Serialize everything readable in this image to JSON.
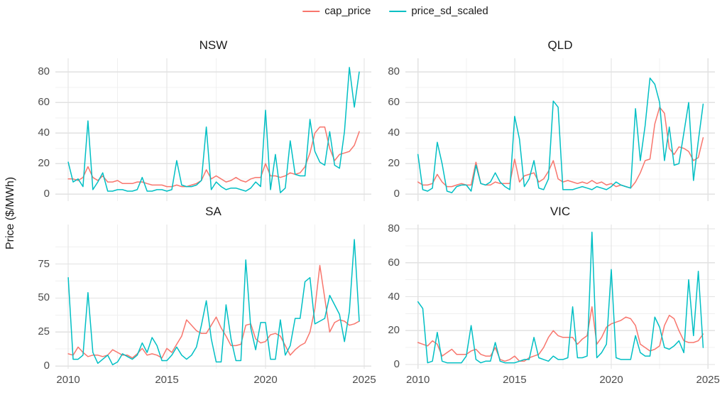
{
  "legend": {
    "items": [
      {
        "label": "cap_price",
        "color": "#F8766D"
      },
      {
        "label": "price_sd_scaled",
        "color": "#00BFC4"
      }
    ]
  },
  "y_axis_title": "Price ($/MWh)",
  "chart_data": {
    "type": "line",
    "title": "",
    "xlabel": "",
    "ylabel": "Price ($/MWh)",
    "legend_position": "top-center",
    "grid": "major and minor, light gray on white",
    "x": {
      "start": 2010,
      "step": 0.25,
      "n": 60,
      "ticks": [
        2010,
        2015,
        2020,
        2025
      ],
      "tick_labels": [
        "2010",
        "2015",
        "2020",
        "2025"
      ],
      "minor_ticks": [
        2012.5,
        2017.5,
        2022.5
      ],
      "lim": [
        2009.35,
        2025.36
      ]
    },
    "series_colors": {
      "cap_price": "#F8766D",
      "price_sd_scaled": "#00BFC4"
    },
    "facets": [
      {
        "title": "NSW",
        "ylim": [
          -4.5,
          89
        ],
        "yticks": [
          0,
          20,
          40,
          60,
          80
        ],
        "yminor": [
          10,
          30,
          50,
          70
        ],
        "show_x_labels": false,
        "series": [
          {
            "name": "cap_price",
            "values": [
              10,
              10,
              9,
              11,
              18,
              11,
              9,
              12,
              8,
              8,
              9,
              7,
              7,
              7,
              8,
              8,
              7,
              6,
              6,
              6,
              5,
              5,
              6,
              5,
              5,
              6,
              7,
              9,
              16,
              10,
              12,
              10,
              8,
              9,
              11,
              9,
              8,
              10,
              11,
              11,
              20,
              12,
              12,
              11,
              12,
              14,
              13,
              14,
              18,
              27,
              40,
              44,
              44,
              30,
              22,
              26,
              27,
              28,
              32,
              41
            ]
          },
          {
            "name": "price_sd_scaled",
            "values": [
              21,
              8,
              10,
              5,
              48,
              3,
              8,
              14,
              2,
              2,
              3,
              3,
              2,
              2,
              3,
              11,
              2,
              2,
              3,
              3,
              2,
              3,
              22,
              6,
              5,
              5,
              6,
              9,
              44,
              3,
              8,
              5,
              3,
              4,
              4,
              3,
              2,
              4,
              8,
              5,
              55,
              3,
              26,
              1,
              4,
              35,
              13,
              12,
              12,
              49,
              28,
              21,
              19,
              41,
              19,
              17,
              41,
              83,
              57,
              80
            ]
          }
        ]
      },
      {
        "title": "QLD",
        "ylim": [
          -4.5,
          89
        ],
        "yticks": [
          0,
          20,
          40,
          60,
          80
        ],
        "yminor": [
          10,
          30,
          50,
          70
        ],
        "show_x_labels": false,
        "series": [
          {
            "name": "cap_price",
            "values": [
              8,
              6,
              6,
              7,
              13,
              8,
              5,
              5,
              6,
              7,
              6,
              6,
              21,
              7,
              6,
              6,
              8,
              7,
              7,
              7,
              23,
              8,
              12,
              13,
              14,
              8,
              10,
              15,
              22,
              10,
              8,
              9,
              8,
              7,
              8,
              7,
              9,
              7,
              8,
              6,
              7,
              5,
              6,
              5,
              4,
              8,
              14,
              22,
              23,
              46,
              57,
              53,
              30,
              26,
              31,
              30,
              28,
              22,
              24,
              37
            ]
          },
          {
            "name": "price_sd_scaled",
            "values": [
              26,
              3,
              2,
              4,
              34,
              20,
              2,
              1,
              5,
              6,
              6,
              2,
              19,
              7,
              6,
              8,
              14,
              8,
              5,
              3,
              51,
              36,
              5,
              10,
              22,
              4,
              3,
              10,
              61,
              57,
              3,
              3,
              3,
              4,
              5,
              4,
              3,
              5,
              4,
              3,
              5,
              8,
              6,
              5,
              4,
              56,
              22,
              45,
              76,
              72,
              60,
              22,
              44,
              19,
              20,
              40,
              60,
              9,
              35,
              59
            ]
          }
        ]
      },
      {
        "title": "SA",
        "ylim": [
          -2,
          104
        ],
        "yticks": [
          0,
          25,
          50,
          75
        ],
        "yminor": [
          12.5,
          37.5,
          62.5,
          87.5
        ],
        "show_x_labels": true,
        "series": [
          {
            "name": "cap_price",
            "values": [
              9,
              8,
              14,
              10,
              7,
              8,
              8,
              7,
              8,
              12,
              10,
              8,
              8,
              6,
              9,
              13,
              8,
              9,
              8,
              6,
              13,
              10,
              16,
              22,
              34,
              30,
              26,
              24,
              24,
              30,
              36,
              28,
              22,
              15,
              15,
              16,
              30,
              31,
              20,
              17,
              18,
              23,
              24,
              22,
              15,
              8,
              12,
              15,
              17,
              25,
              42,
              74,
              50,
              25,
              32,
              34,
              33,
              30,
              31,
              33
            ]
          },
          {
            "name": "price_sd_scaled",
            "values": [
              65,
              5,
              5,
              8,
              54,
              10,
              2,
              5,
              8,
              1,
              3,
              9,
              7,
              5,
              8,
              17,
              10,
              21,
              15,
              4,
              4,
              8,
              14,
              8,
              5,
              8,
              14,
              30,
              48,
              20,
              3,
              3,
              45,
              20,
              4,
              4,
              78,
              28,
              12,
              32,
              32,
              5,
              5,
              34,
              8,
              15,
              35,
              35,
              62,
              65,
              31,
              33,
              35,
              52,
              45,
              38,
              18,
              40,
              93,
              33
            ]
          }
        ]
      },
      {
        "title": "VIC",
        "ylim": [
          -2.5,
          82.5
        ],
        "yticks": [
          0,
          20,
          40,
          60,
          80
        ],
        "yminor": [
          10,
          30,
          50,
          70
        ],
        "show_x_labels": true,
        "series": [
          {
            "name": "cap_price",
            "values": [
              13,
              12,
              11,
              14,
              12,
              5,
              7,
              9,
              6,
              6,
              6,
              8,
              9,
              6,
              5,
              5,
              10,
              3,
              2,
              3,
              5,
              2,
              2,
              4,
              5,
              6,
              10,
              16,
              20,
              17,
              16,
              16,
              16,
              12,
              15,
              17,
              34,
              12,
              16,
              22,
              24,
              25,
              26,
              28,
              27,
              23,
              12,
              10,
              8,
              9,
              11,
              23,
              29,
              27,
              20,
              14,
              13,
              13,
              14,
              18
            ]
          },
          {
            "name": "price_sd_scaled",
            "values": [
              37,
              33,
              1,
              2,
              19,
              2,
              1,
              1,
              1,
              1,
              5,
              23,
              3,
              1,
              2,
              2,
              13,
              2,
              1,
              1,
              1,
              2,
              3,
              3,
              16,
              4,
              3,
              2,
              5,
              3,
              3,
              4,
              34,
              4,
              4,
              5,
              78,
              4,
              7,
              12,
              56,
              4,
              3,
              3,
              3,
              17,
              7,
              5,
              5,
              28,
              22,
              10,
              9,
              11,
              14,
              7,
              50,
              17,
              55,
              10
            ]
          }
        ]
      }
    ]
  }
}
